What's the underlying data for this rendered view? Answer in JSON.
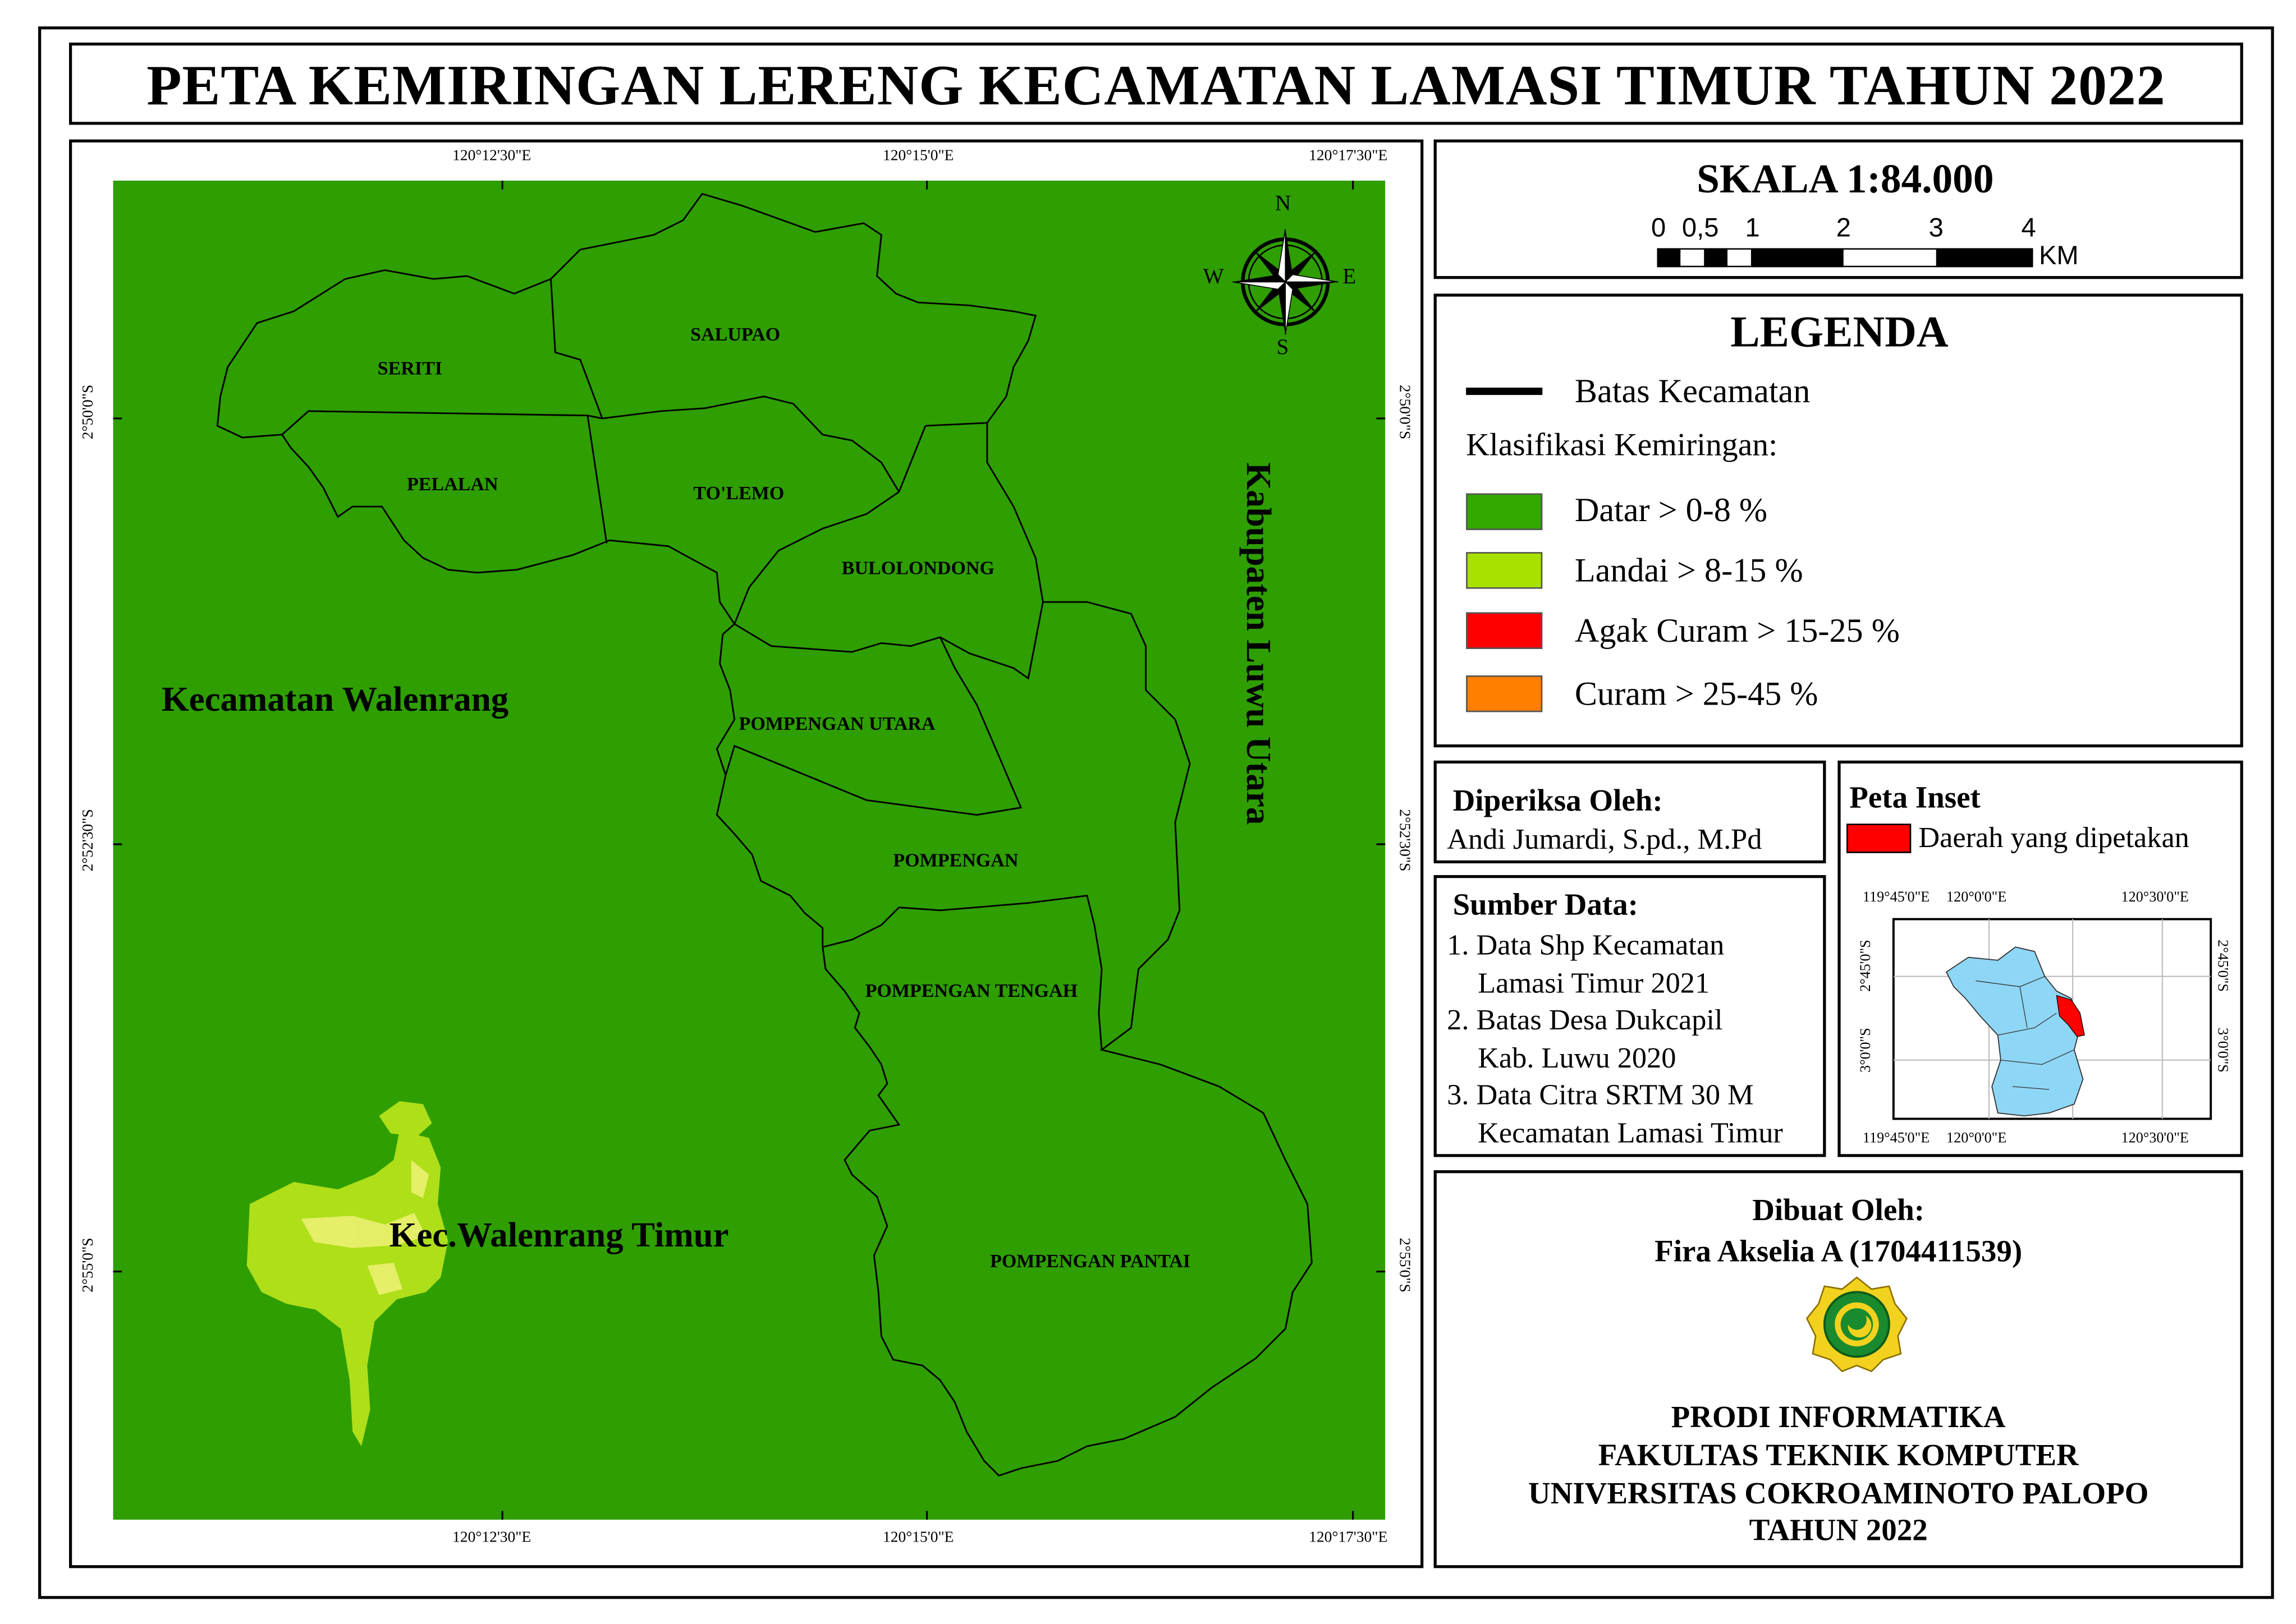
{
  "title": "PETA KEMIRINGAN LERENG KECAMATAN LAMASI TIMUR TAHUN 2022",
  "map": {
    "coords_top": [
      "120°12'30\"E",
      "120°15'0\"E",
      "120°17'30\"E"
    ],
    "coords_bottom": [
      "120°12'30\"E",
      "120°15'0\"E",
      "120°17'30\"E"
    ],
    "coords_left": [
      "2°50'0\"S",
      "2°52'30\"S",
      "2°55'0\"S"
    ],
    "coords_right": [
      "2°50'0\"S",
      "2°52'30\"S",
      "2°55'0\"S"
    ],
    "villages": {
      "seriti": "SERITI",
      "salupao": "SALUPAO",
      "pelalan": "PELALAN",
      "tolemo": "TO'LEMO",
      "bulolondong": "BULOLONDONG",
      "pompengan_utara": "POMPENGAN UTARA",
      "pompengan": "POMPENGAN",
      "pompengan_tengah": "POMPENGAN TENGAH",
      "pompengan_pantai": "POMPENGAN PANTAI"
    },
    "regions": {
      "walenrang": "Kecamatan Walenrang",
      "walenrang_timur": "Kec.Walenrang Timur",
      "luwu_utara": "Kabupaten Luwu Utara"
    },
    "compass": {
      "n": "N",
      "s": "S",
      "e": "E",
      "w": "W"
    },
    "colors": {
      "datar": "#2e9e00",
      "landai": "#b5e31a",
      "boundary": "#000000"
    }
  },
  "scale": {
    "title": "SKALA 1:84.000",
    "ticks": [
      "0",
      "0,5",
      "1",
      "2",
      "3",
      "4"
    ],
    "unit": "KM"
  },
  "legend": {
    "title": "LEGENDA",
    "boundary_label": "Batas Kecamatan",
    "class_title": "Klasifikasi Kemiringan:",
    "items": [
      {
        "label": "Datar > 0-8 %",
        "color": "#33a800"
      },
      {
        "label": "Landai > 8-15 %",
        "color": "#a8e000"
      },
      {
        "label": "Agak Curam > 15-25 %",
        "color": "#ff0000"
      },
      {
        "label": "Curam > 25-45 %",
        "color": "#ff7f00"
      }
    ]
  },
  "checked": {
    "title": "Diperiksa Oleh:",
    "name": "Andi Jumardi, S.pd., M.Pd"
  },
  "source": {
    "title": "Sumber Data:",
    "items": [
      "1. Data Shp Kecamatan",
      "Lamasi Timur 2021",
      "2. Batas Desa Dukcapil",
      "Kab. Luwu 2020",
      "3. Data Citra SRTM 30 M",
      "Kecamatan Lamasi Timur"
    ]
  },
  "inset": {
    "title": "Peta Inset",
    "legend_label": "Daerah yang dipetakan",
    "highlight_color": "#ff0000",
    "area_color": "#8ed6f5",
    "top_ticks": [
      "119°45'0\"E",
      "120°0'0\"E",
      "120°30'0\"E"
    ],
    "bottom_ticks": [
      "119°45'0\"E",
      "120°0'0\"E",
      "120°30'0\"E"
    ],
    "left_ticks": [
      "2°45'0\"S",
      "3°0'0\"S"
    ],
    "right_ticks": [
      "2°45'0\"S",
      "3°0'0\"S"
    ]
  },
  "made_by": {
    "title": "Dibuat Oleh:",
    "name": "Fira Akselia A (1704411539)",
    "lines": [
      "PRODI INFORMATIKA",
      "FAKULTAS TEKNIK KOMPUTER",
      "UNIVERSITAS COKROAMINOTO PALOPO",
      "TAHUN 2022"
    ]
  }
}
